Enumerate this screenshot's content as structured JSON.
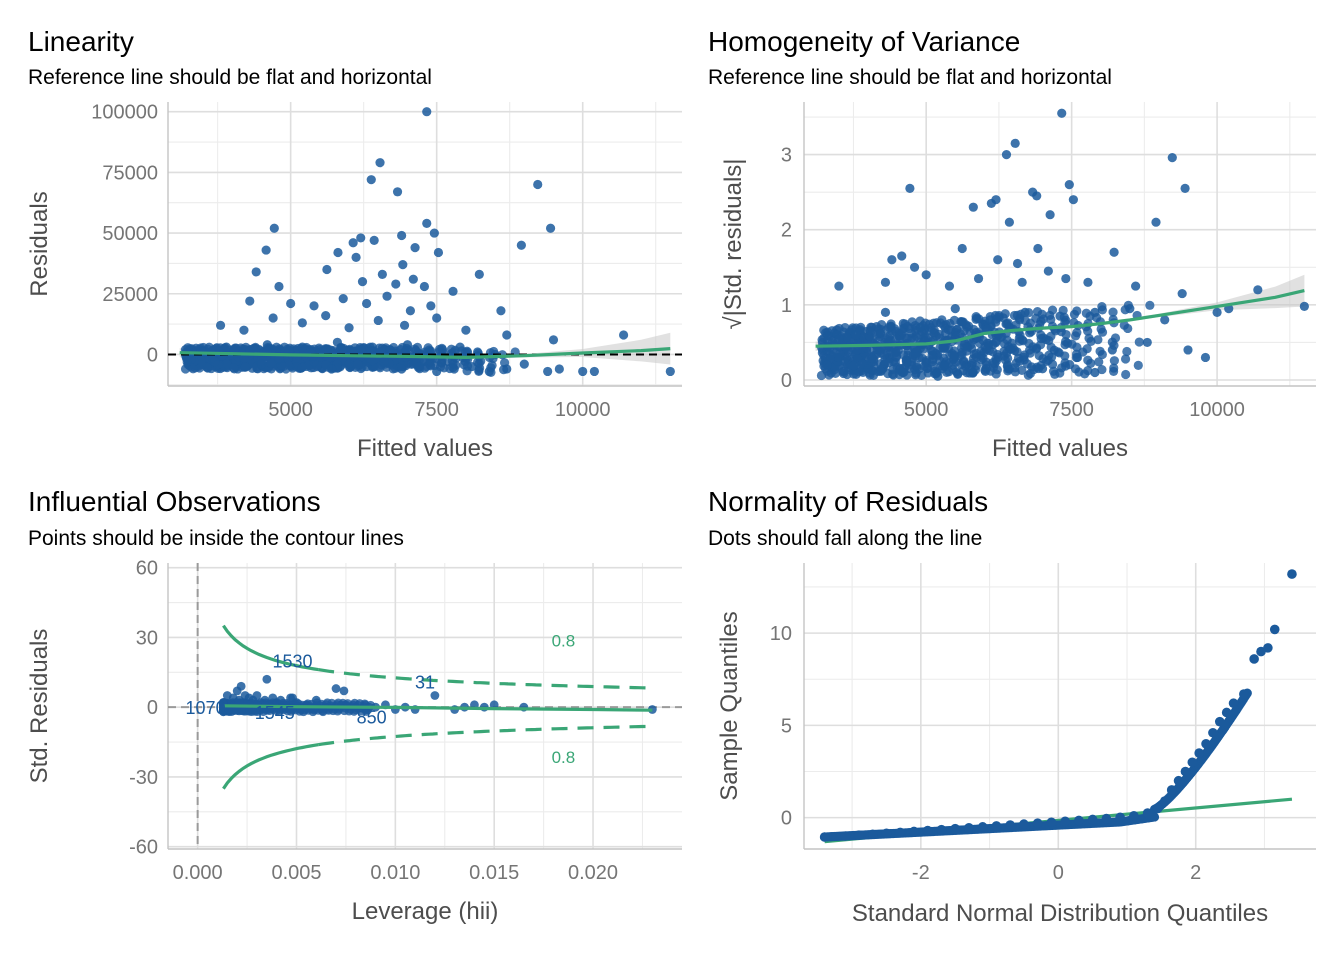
{
  "chart_data": [
    {
      "type": "scatter",
      "id": "linearity",
      "title": "Linearity",
      "subtitle": "Reference line should be flat and horizontal",
      "xlabel": "Fitted values",
      "ylabel": "Residuals",
      "xlim": [
        2900,
        11700
      ],
      "ylim": [
        -13000,
        104000
      ],
      "xticks": [
        5000,
        7500,
        10000
      ],
      "xtick_labels": [
        "5000",
        "7500",
        "10000"
      ],
      "yticks": [
        0,
        25000,
        50000,
        75000,
        100000
      ],
      "ytick_labels": [
        "0",
        "25000",
        "50000",
        "75000",
        "100000"
      ],
      "reference_line_y": 0,
      "loess": [
        [
          3100,
          700
        ],
        [
          4000,
          300
        ],
        [
          5000,
          -200
        ],
        [
          6000,
          -500
        ],
        [
          7000,
          -800
        ],
        [
          8000,
          -1200
        ],
        [
          9000,
          -500
        ],
        [
          10000,
          600
        ],
        [
          11000,
          1600
        ],
        [
          11500,
          2400
        ]
      ],
      "points": [
        [
          7330,
          100000
        ],
        [
          6530,
          79000
        ],
        [
          6380,
          72000
        ],
        [
          6830,
          67000
        ],
        [
          9230,
          70000
        ],
        [
          4720,
          52000
        ],
        [
          7330,
          54000
        ],
        [
          9450,
          52000
        ],
        [
          7460,
          50000
        ],
        [
          6200,
          48000
        ],
        [
          6070,
          46000
        ],
        [
          6430,
          47000
        ],
        [
          6900,
          49000
        ],
        [
          8950,
          45000
        ],
        [
          4580,
          43000
        ],
        [
          5810,
          42000
        ],
        [
          6120,
          40000
        ],
        [
          7130,
          44000
        ],
        [
          7530,
          42000
        ],
        [
          4410,
          34000
        ],
        [
          5620,
          35000
        ],
        [
          6920,
          37000
        ],
        [
          8230,
          33000
        ],
        [
          4800,
          28000
        ],
        [
          6230,
          30000
        ],
        [
          6570,
          33000
        ],
        [
          6800,
          29000
        ],
        [
          7100,
          31000
        ],
        [
          7290,
          28000
        ],
        [
          7780,
          26000
        ],
        [
          4300,
          22000
        ],
        [
          5000,
          21000
        ],
        [
          5400,
          20000
        ],
        [
          5900,
          23000
        ],
        [
          6300,
          21000
        ],
        [
          6650,
          24000
        ],
        [
          7050,
          18000
        ],
        [
          7400,
          20000
        ],
        [
          8600,
          18000
        ],
        [
          3800,
          12000
        ],
        [
          4200,
          10000
        ],
        [
          4700,
          15000
        ],
        [
          5200,
          13000
        ],
        [
          5600,
          16000
        ],
        [
          6000,
          11000
        ],
        [
          6500,
          14000
        ],
        [
          6950,
          12000
        ],
        [
          7500,
          15000
        ],
        [
          8000,
          10000
        ],
        [
          8700,
          8000
        ],
        [
          9500,
          6000
        ],
        [
          3200,
          2000
        ],
        [
          3500,
          1000
        ],
        [
          3900,
          3000
        ],
        [
          4300,
          2000
        ],
        [
          4600,
          4000
        ],
        [
          4900,
          1000
        ],
        [
          5200,
          3000
        ],
        [
          5500,
          2000
        ],
        [
          5800,
          5000
        ],
        [
          6100,
          1000
        ],
        [
          6400,
          3000
        ],
        [
          6700,
          2000
        ],
        [
          7000,
          4000
        ],
        [
          7300,
          1000
        ],
        [
          7600,
          2000
        ],
        [
          7900,
          3000
        ],
        [
          8200,
          1000
        ],
        [
          8500,
          0
        ],
        [
          3300,
          -2000
        ],
        [
          3700,
          -3000
        ],
        [
          4100,
          -1000
        ],
        [
          4500,
          -4000
        ],
        [
          4800,
          -2000
        ],
        [
          5100,
          -5000
        ],
        [
          5400,
          -3000
        ],
        [
          5700,
          -6000
        ],
        [
          6000,
          -4000
        ],
        [
          6300,
          -5000
        ],
        [
          6600,
          -3000
        ],
        [
          6900,
          -6000
        ],
        [
          7200,
          -5000
        ],
        [
          7500,
          -7000
        ],
        [
          7800,
          -6000
        ],
        [
          8100,
          -5000
        ],
        [
          8400,
          -7000
        ],
        [
          8700,
          -6000
        ],
        [
          9000,
          -4000
        ],
        [
          9400,
          -7000
        ],
        [
          9600,
          -6000
        ],
        [
          10000,
          -7000
        ],
        [
          10200,
          -7000
        ],
        [
          10700,
          8000
        ],
        [
          11500,
          -7000
        ]
      ]
    },
    {
      "type": "scatter",
      "id": "homogeneity",
      "title": "Homogeneity of Variance",
      "subtitle": "Reference line should be flat and horizontal",
      "xlabel": "Fitted values",
      "ylabel": "√|Std. residuals|",
      "xlim": [
        2900,
        11700
      ],
      "ylim": [
        -0.08,
        3.7
      ],
      "xticks": [
        5000,
        7500,
        10000
      ],
      "xtick_labels": [
        "5000",
        "7500",
        "10000"
      ],
      "yticks": [
        0,
        1,
        2,
        3
      ],
      "ytick_labels": [
        "0",
        "1",
        "2",
        "3"
      ],
      "loess": [
        [
          3100,
          0.45
        ],
        [
          4000,
          0.46
        ],
        [
          5000,
          0.48
        ],
        [
          5500,
          0.52
        ],
        [
          6000,
          0.62
        ],
        [
          6500,
          0.66
        ],
        [
          7000,
          0.69
        ],
        [
          7500,
          0.71
        ],
        [
          8000,
          0.75
        ],
        [
          8500,
          0.8
        ],
        [
          9000,
          0.86
        ],
        [
          10000,
          0.98
        ],
        [
          11000,
          1.1
        ],
        [
          11500,
          1.19
        ]
      ],
      "points": [
        [
          7330,
          3.55
        ],
        [
          6530,
          3.15
        ],
        [
          6380,
          3.0
        ],
        [
          9230,
          2.96
        ],
        [
          7460,
          2.6
        ],
        [
          4720,
          2.55
        ],
        [
          6830,
          2.5
        ],
        [
          9450,
          2.55
        ],
        [
          6900,
          2.45
        ],
        [
          7530,
          2.4
        ],
        [
          6200,
          2.4
        ],
        [
          5810,
          2.3
        ],
        [
          6120,
          2.35
        ],
        [
          7130,
          2.2
        ],
        [
          6430,
          2.1
        ],
        [
          8950,
          2.1
        ],
        [
          4580,
          1.65
        ],
        [
          5620,
          1.75
        ],
        [
          6920,
          1.75
        ],
        [
          8230,
          1.7
        ],
        [
          4410,
          1.6
        ],
        [
          4800,
          1.5
        ],
        [
          6230,
          1.6
        ],
        [
          6570,
          1.55
        ],
        [
          7100,
          1.45
        ],
        [
          7780,
          1.3
        ],
        [
          3500,
          1.25
        ],
        [
          4300,
          1.3
        ],
        [
          5000,
          1.4
        ],
        [
          5400,
          1.25
        ],
        [
          5900,
          1.35
        ],
        [
          6650,
          1.3
        ],
        [
          7400,
          1.35
        ],
        [
          8600,
          1.25
        ],
        [
          9400,
          1.15
        ],
        [
          10700,
          1.2
        ],
        [
          11500,
          0.98
        ],
        [
          3300,
          0.2
        ],
        [
          3500,
          0.3
        ],
        [
          3800,
          0.6
        ],
        [
          4000,
          0.15
        ],
        [
          4300,
          0.9
        ],
        [
          4600,
          0.1
        ],
        [
          4900,
          0.7
        ],
        [
          5200,
          0.05
        ],
        [
          5500,
          0.95
        ],
        [
          5800,
          0.1
        ],
        [
          6100,
          0.8
        ],
        [
          6400,
          0.2
        ],
        [
          6700,
          0.9
        ],
        [
          7000,
          0.15
        ],
        [
          7300,
          0.85
        ],
        [
          7600,
          0.3
        ],
        [
          7900,
          0.9
        ],
        [
          8200,
          0.4
        ],
        [
          8500,
          0.95
        ],
        [
          8800,
          0.5
        ],
        [
          9100,
          0.8
        ],
        [
          9500,
          0.4
        ],
        [
          10000,
          0.9
        ],
        [
          10200,
          0.95
        ],
        [
          9800,
          0.3
        ],
        [
          7900,
          0.1
        ]
      ]
    },
    {
      "type": "scatter",
      "id": "influential",
      "title": "Influential Observations",
      "subtitle": "Points should be inside the contour lines",
      "xlabel": "Leverage (hii)",
      "ylabel": "Std. Residuals",
      "xlim": [
        -0.0015,
        0.0245
      ],
      "ylim": [
        -61,
        62
      ],
      "xticks": [
        0.0,
        0.005,
        0.01,
        0.015,
        0.02
      ],
      "xtick_labels": [
        "0.000",
        "0.005",
        "0.010",
        "0.015",
        "0.020"
      ],
      "yticks": [
        -60,
        -30,
        0,
        30,
        60
      ],
      "ytick_labels": [
        "-60",
        "-30",
        "0",
        "30",
        "60"
      ],
      "contour_label": "0.8",
      "observation_labels": [
        {
          "text": "1530",
          "x": 0.0048,
          "y": 20
        },
        {
          "text": "31",
          "x": 0.0115,
          "y": 11
        },
        {
          "text": "1070",
          "x": 0.0004,
          "y": 0
        },
        {
          "text": "1545",
          "x": 0.0039,
          "y": -2
        },
        {
          "text": "850",
          "x": 0.0088,
          "y": -4
        }
      ],
      "loess": [
        [
          0.0013,
          0.6
        ],
        [
          0.005,
          0.2
        ],
        [
          0.01,
          -0.1
        ],
        [
          0.015,
          -0.6
        ],
        [
          0.02,
          -1.0
        ],
        [
          0.023,
          -1.3
        ]
      ],
      "points": [
        [
          0.0013,
          2
        ],
        [
          0.0015,
          5
        ],
        [
          0.0016,
          -1
        ],
        [
          0.0018,
          4
        ],
        [
          0.0019,
          1
        ],
        [
          0.002,
          7
        ],
        [
          0.0021,
          3
        ],
        [
          0.0022,
          9
        ],
        [
          0.0023,
          2
        ],
        [
          0.0024,
          5
        ],
        [
          0.0025,
          1
        ],
        [
          0.0026,
          4
        ],
        [
          0.0027,
          0
        ],
        [
          0.0028,
          3
        ],
        [
          0.003,
          5
        ],
        [
          0.0032,
          2
        ],
        [
          0.0034,
          3
        ],
        [
          0.0035,
          12
        ],
        [
          0.0036,
          1
        ],
        [
          0.0038,
          4
        ],
        [
          0.004,
          2
        ],
        [
          0.0042,
          3
        ],
        [
          0.0045,
          1
        ],
        [
          0.0048,
          4
        ],
        [
          0.005,
          2
        ],
        [
          0.0055,
          1
        ],
        [
          0.006,
          3
        ],
        [
          0.0065,
          0
        ],
        [
          0.007,
          8
        ],
        [
          0.0075,
          1
        ],
        [
          0.008,
          0
        ],
        [
          0.0085,
          -1
        ],
        [
          0.009,
          0
        ],
        [
          0.0095,
          1
        ],
        [
          0.01,
          -1
        ],
        [
          0.0105,
          0
        ],
        [
          0.011,
          -1
        ],
        [
          0.012,
          5
        ],
        [
          0.013,
          -1
        ],
        [
          0.0135,
          0
        ],
        [
          0.014,
          1
        ],
        [
          0.0145,
          0
        ],
        [
          0.015,
          1
        ],
        [
          0.0165,
          0
        ],
        [
          0.023,
          -1
        ],
        [
          0.0074,
          7
        ],
        [
          0.0047,
          4
        ]
      ]
    },
    {
      "type": "scatter",
      "id": "normality",
      "title": "Normality of Residuals",
      "subtitle": "Dots should fall along the line",
      "xlabel": "Standard Normal Distribution Quantiles",
      "ylabel": "Sample Quantiles",
      "xlim": [
        -3.7,
        3.75
      ],
      "ylim": [
        -1.7,
        13.8
      ],
      "xticks": [
        -2,
        0,
        2
      ],
      "xtick_labels": [
        "-2",
        "0",
        "2"
      ],
      "yticks": [
        0,
        5,
        10
      ],
      "ytick_labels": [
        "0",
        "5",
        "10"
      ],
      "reference_line": [
        [
          -3.4,
          -1.3
        ],
        [
          3.4,
          1.0
        ]
      ],
      "points": [
        [
          -3.4,
          -1.05
        ],
        [
          -3.1,
          -1.0
        ],
        [
          -2.9,
          -0.95
        ],
        [
          -2.7,
          -0.9
        ],
        [
          -2.5,
          -0.85
        ],
        [
          -2.3,
          -0.8
        ],
        [
          -2.1,
          -0.75
        ],
        [
          -1.9,
          -0.7
        ],
        [
          -1.7,
          -0.65
        ],
        [
          -1.5,
          -0.6
        ],
        [
          -1.3,
          -0.55
        ],
        [
          -1.1,
          -0.5
        ],
        [
          -0.9,
          -0.45
        ],
        [
          -0.7,
          -0.4
        ],
        [
          -0.5,
          -0.35
        ],
        [
          -0.3,
          -0.3
        ],
        [
          -0.1,
          -0.25
        ],
        [
          0.1,
          -0.2
        ],
        [
          0.3,
          -0.15
        ],
        [
          0.5,
          -0.1
        ],
        [
          0.7,
          -0.05
        ],
        [
          0.9,
          0.02
        ],
        [
          1.1,
          0.1
        ],
        [
          1.3,
          0.25
        ],
        [
          1.45,
          0.5
        ],
        [
          1.55,
          0.9
        ],
        [
          1.65,
          1.5
        ],
        [
          1.75,
          2.0
        ],
        [
          1.85,
          2.5
        ],
        [
          1.95,
          3.0
        ],
        [
          2.05,
          3.5
        ],
        [
          2.15,
          4.0
        ],
        [
          2.25,
          4.6
        ],
        [
          2.35,
          5.2
        ],
        [
          2.45,
          5.7
        ],
        [
          2.55,
          6.2
        ],
        [
          2.7,
          6.7
        ],
        [
          2.85,
          8.6
        ],
        [
          2.95,
          9.0
        ],
        [
          3.05,
          9.2
        ],
        [
          3.15,
          10.2
        ],
        [
          3.4,
          13.2
        ]
      ]
    }
  ]
}
